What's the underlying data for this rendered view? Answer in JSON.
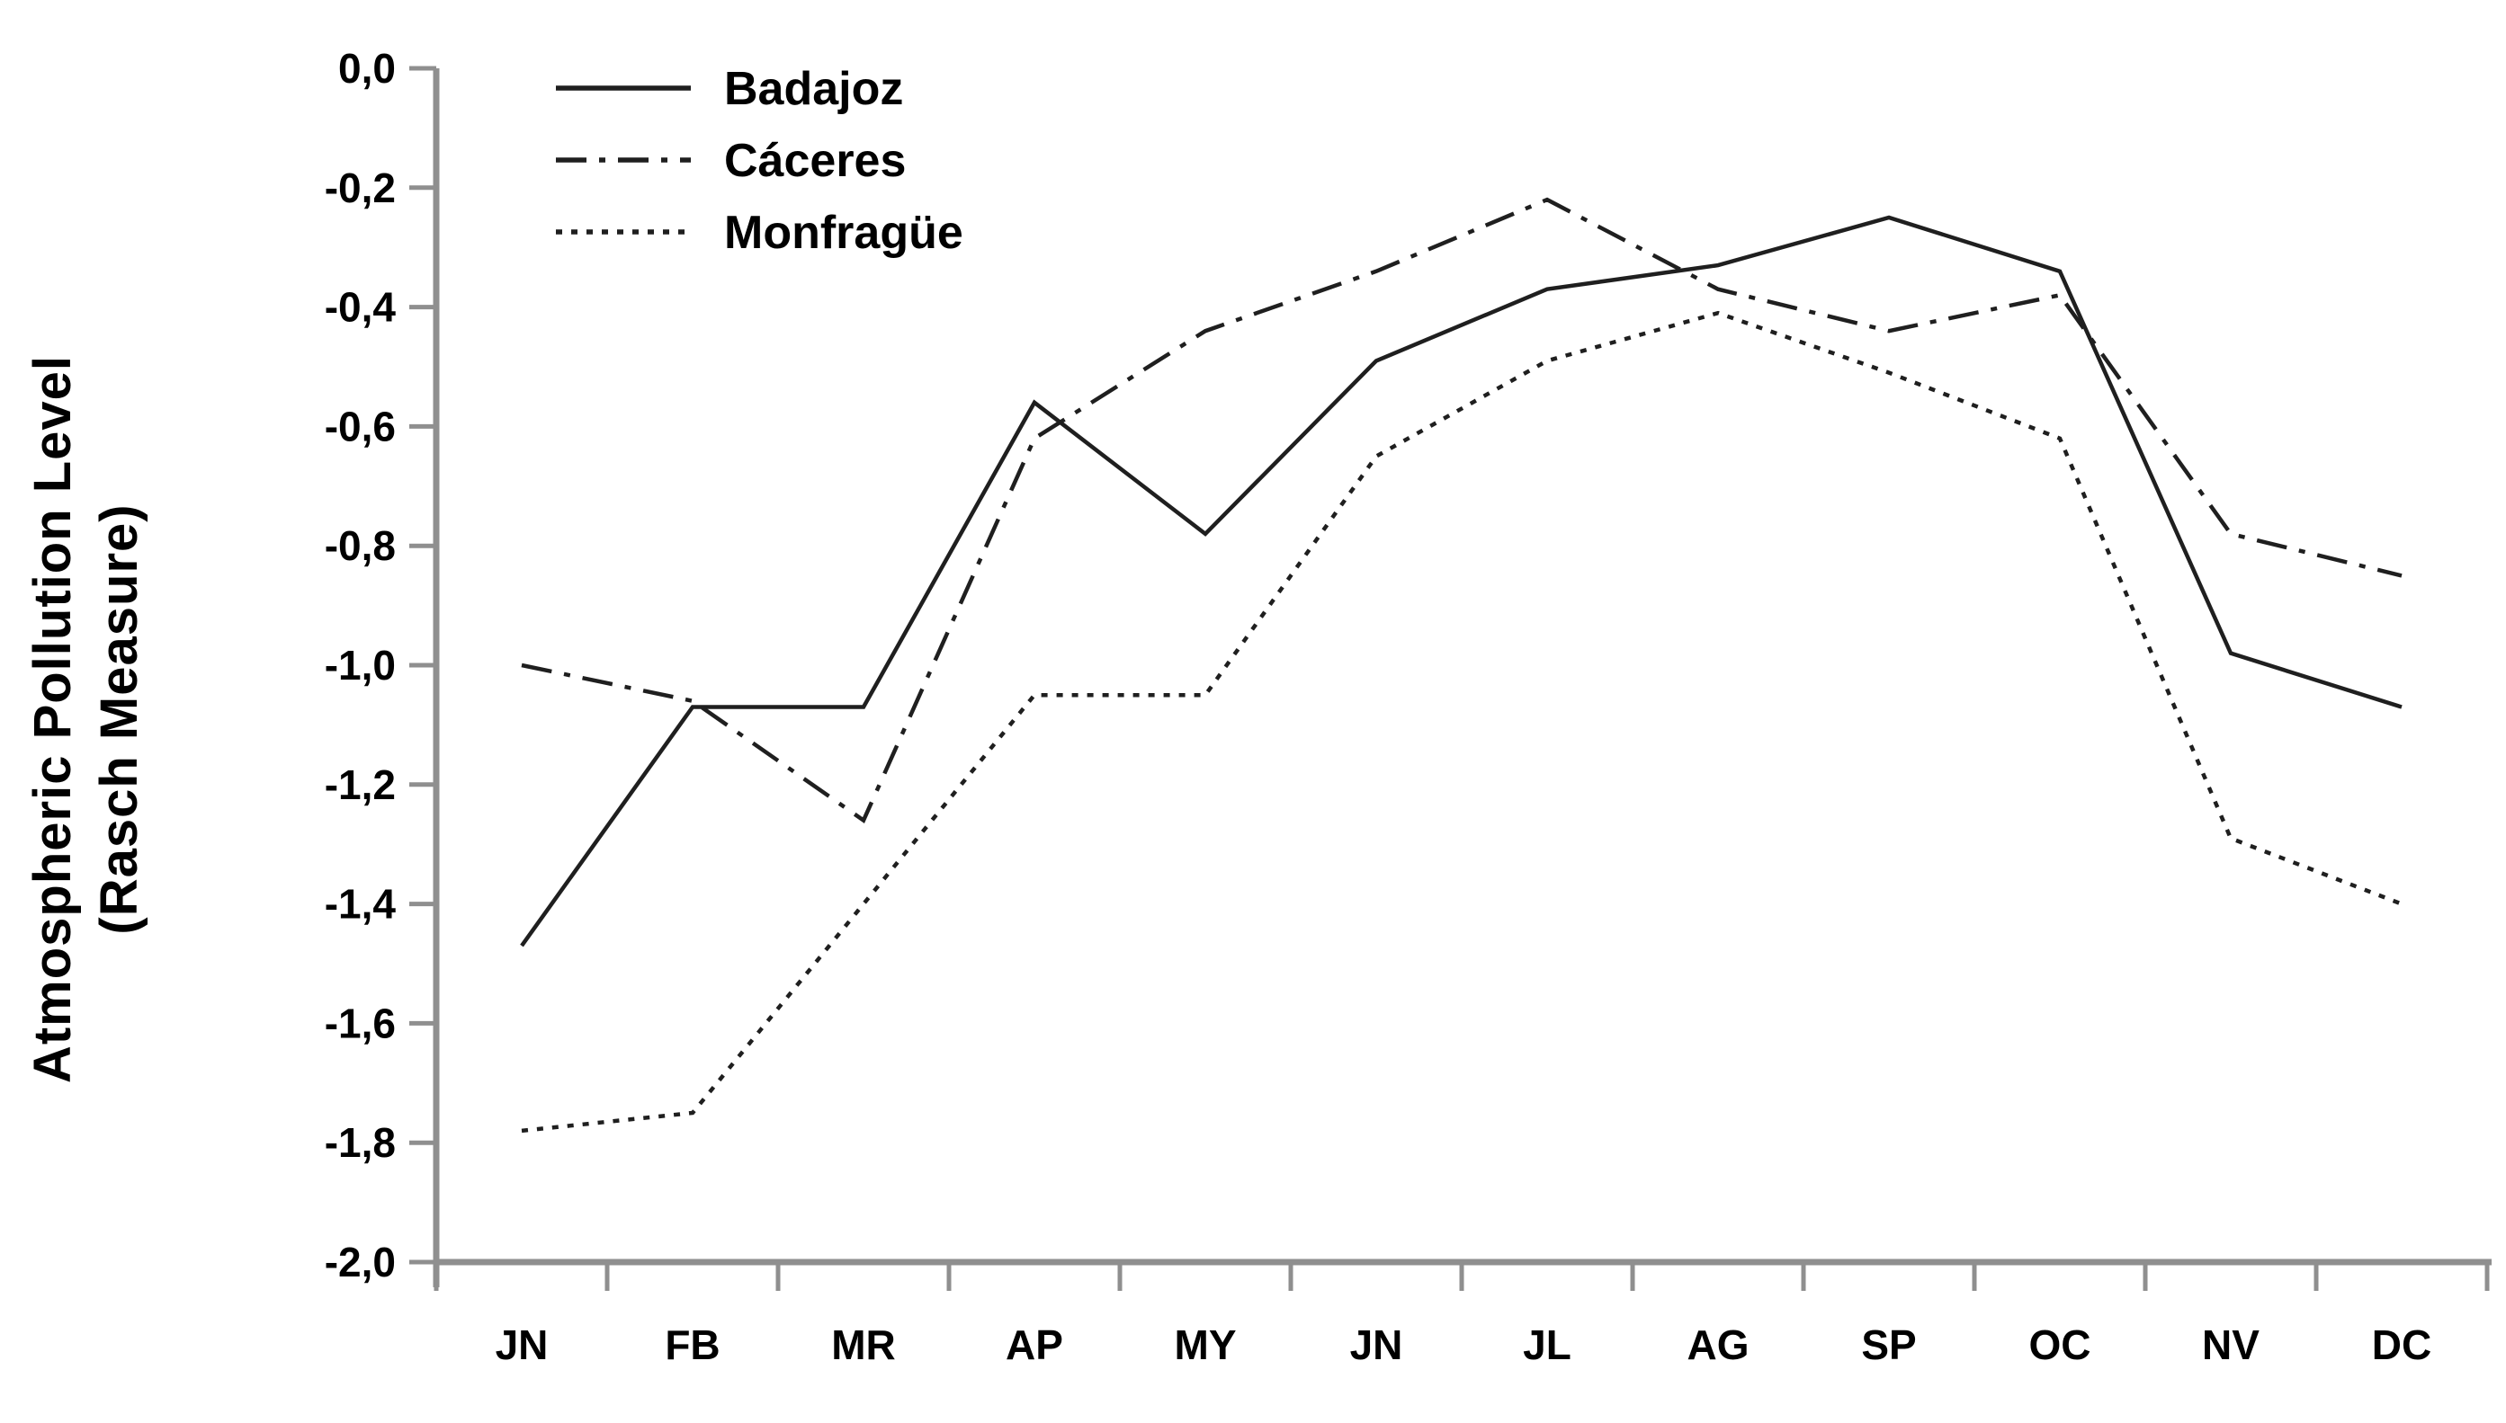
{
  "chart_data": {
    "type": "line",
    "title": "",
    "xlabel": "",
    "ylabel": "Atmospheric Pollution Level (Rasch Measure)",
    "ylabel_lines": [
      "Atmospheric Pollution Level",
      "(Rasch Measure)"
    ],
    "categories": [
      "JN",
      "FB",
      "MR",
      "AP",
      "MY",
      "JN",
      "JL",
      "AG",
      "SP",
      "OC",
      "NV",
      "DC"
    ],
    "ylim": [
      -2.0,
      0.0
    ],
    "grid": "off",
    "legend_position": "top-left-inside",
    "decimal_separator": ",",
    "y_ticks": [
      {
        "value": 0.0,
        "label": "0,0"
      },
      {
        "value": -0.2,
        "label": "-0,2"
      },
      {
        "value": -0.4,
        "label": "-0,4"
      },
      {
        "value": -0.6,
        "label": "-0,6"
      },
      {
        "value": -0.8,
        "label": "-0,8"
      },
      {
        "value": -1.0,
        "label": "-1,0"
      },
      {
        "value": -1.2,
        "label": "-1,2"
      },
      {
        "value": -1.4,
        "label": "-1,4"
      },
      {
        "value": -1.6,
        "label": "-1,6"
      },
      {
        "value": -1.8,
        "label": "-1,8"
      },
      {
        "value": -2.0,
        "label": "-2,0"
      }
    ],
    "series": [
      {
        "name": "Badajoz",
        "line_style": "solid",
        "values": [
          -1.47,
          -1.07,
          -1.07,
          -0.56,
          -0.78,
          -0.49,
          -0.37,
          -0.33,
          -0.25,
          -0.34,
          -0.98,
          -1.07
        ]
      },
      {
        "name": "Cáceres",
        "line_style": "dash-dot",
        "values": [
          -1.0,
          -1.06,
          -1.26,
          -0.62,
          -0.44,
          -0.34,
          -0.22,
          -0.37,
          -0.44,
          -0.38,
          -0.78,
          -0.85
        ]
      },
      {
        "name": "Monfragüe",
        "line_style": "dotted",
        "values": [
          -1.78,
          -1.75,
          -1.4,
          -1.05,
          -1.05,
          -0.65,
          -0.49,
          -0.41,
          -0.51,
          -0.62,
          -1.29,
          -1.4
        ]
      }
    ]
  },
  "colors": {
    "line": "#1f1f1f",
    "axis": "#8f8f8f",
    "text": "#000000",
    "background": "#ffffff"
  }
}
